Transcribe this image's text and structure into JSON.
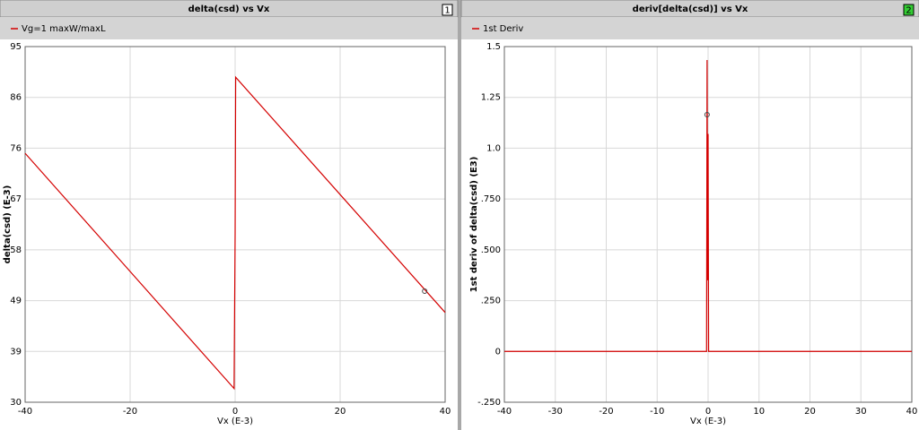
{
  "chart_data": [
    {
      "type": "line",
      "title": "delta(csd) vs Vx",
      "badge": "1",
      "xlabel": "Vx (E-3)",
      "ylabel": "delta(csd) (E-3)",
      "xlim": [
        -40,
        40
      ],
      "ylim": [
        30,
        95
      ],
      "xticks": [
        -40,
        -20,
        0,
        20,
        40
      ],
      "yticks": [
        30,
        {
          "value": 39.286,
          "label": "39"
        },
        {
          "value": 48.571,
          "label": "49"
        },
        {
          "value": 57.857,
          "label": "58"
        },
        {
          "value": 67.143,
          "label": "67"
        },
        {
          "value": 76.429,
          "label": "76"
        },
        {
          "value": 85.714,
          "label": "86"
        },
        95
      ],
      "grid": true,
      "series": [
        {
          "name": "Vg=1 maxW/maxL",
          "color": "#d40000",
          "x": [
            -40,
            -0.2,
            0,
            0.1,
            40
          ],
          "values": [
            75.5,
            32.5,
            61,
            89.4,
            46.4
          ]
        }
      ],
      "marker": {
        "x": 36.1,
        "y": 50.3
      }
    },
    {
      "type": "line",
      "title": "deriv[delta(csd)] vs Vx",
      "badge": "2",
      "xlabel": "Vx (E-3)",
      "ylabel": "1st deriv of delta(csd) (E3)",
      "xlim": [
        -40,
        40
      ],
      "ylim": [
        -0.25,
        1.5
      ],
      "xticks": [
        -40,
        -30,
        -20,
        -10,
        0,
        10,
        20,
        30,
        40
      ],
      "yticks": [
        {
          "value": -0.25,
          "label": "-.250"
        },
        0,
        {
          "value": 0.25,
          "label": ".250"
        },
        {
          "value": 0.5,
          "label": ".500"
        },
        {
          "value": 0.75,
          "label": ".750"
        },
        {
          "value": 1,
          "label": "1.0"
        },
        1.25,
        1.5
      ],
      "grid": true,
      "series": [
        {
          "name": "1st Deriv",
          "color": "#d40000",
          "x": [
            -40,
            -0.3,
            -0.2,
            -0.1,
            0,
            0.1,
            40
          ],
          "values": [
            0,
            0,
            1.434,
            0.35,
            1.07,
            0,
            0
          ]
        }
      ],
      "marker": {
        "x": -0.2,
        "y": 1.165
      }
    }
  ]
}
